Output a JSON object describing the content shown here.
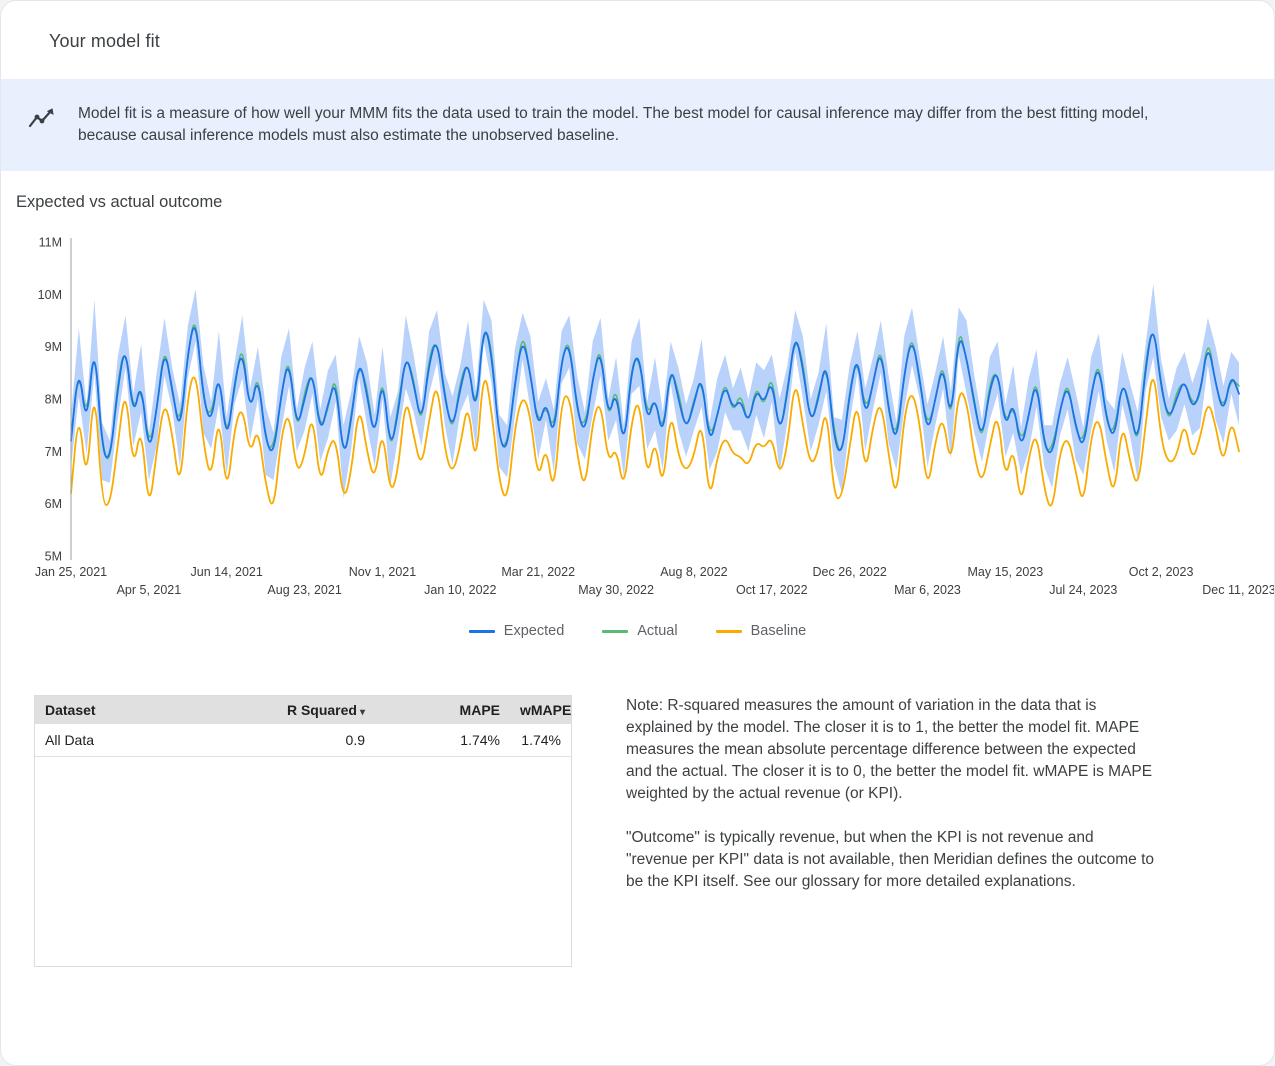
{
  "page": {
    "title": "Your model fit"
  },
  "banner": {
    "text": "Model fit is a measure of how well your MMM fits the data used to train the model. The best model for causal inference may differ from the best fitting model, because causal inference models must also estimate the unobserved baseline."
  },
  "chart_data": {
    "type": "line",
    "title": "Expected vs actual outcome",
    "xlabel": "",
    "ylabel": "",
    "ylim": [
      5,
      11
    ],
    "grid": false,
    "legend_position": "bottom",
    "y_ticks": [
      "5M",
      "6M",
      "7M",
      "8M",
      "9M",
      "10M",
      "11M"
    ],
    "y_tick_values": [
      5,
      6,
      7,
      8,
      9,
      10,
      11
    ],
    "x_tick_indices": [
      0,
      10,
      20,
      30,
      40,
      50,
      60,
      70,
      80,
      90,
      100,
      110,
      120,
      130,
      140,
      150
    ],
    "x_tick_labels": [
      "Jan 25, 2021",
      "Apr 5, 2021",
      "Jun 14, 2021",
      "Aug 23, 2021",
      "Nov 1, 2021",
      "Jan 10, 2022",
      "Mar 21, 2022",
      "May 30, 2022",
      "Aug 8, 2022",
      "Oct 17, 2022",
      "Dec 26, 2022",
      "Mar 6, 2023",
      "May 15, 2023",
      "Jul 24, 2023",
      "Oct 2, 2023",
      "Dec 11, 2023"
    ],
    "unit": "M",
    "legend": [
      "Expected",
      "Actual",
      "Baseline"
    ],
    "series": [
      {
        "name": "Expected",
        "color": "#1a73e8",
        "width": 1.8,
        "values": [
          7.2,
          8.7,
          7.4,
          9.2,
          7.0,
          6.8,
          8.2,
          9.1,
          7.6,
          8.4,
          6.9,
          7.8,
          9.0,
          8.2,
          7.3,
          8.9,
          9.6,
          8.0,
          7.5,
          8.6,
          7.1,
          8.3,
          9.0,
          7.7,
          8.5,
          7.2,
          6.9,
          8.1,
          8.8,
          7.4,
          8.0,
          8.6,
          7.3,
          7.9,
          8.4,
          6.8,
          7.6,
          8.8,
          8.1,
          7.2,
          8.5,
          7.0,
          7.7,
          8.9,
          8.3,
          7.5,
          8.7,
          9.2,
          8.0,
          7.4,
          8.2,
          8.8,
          7.6,
          9.5,
          8.9,
          7.2,
          7.0,
          8.3,
          9.2,
          8.5,
          7.4,
          8.0,
          7.2,
          8.8,
          9.1,
          7.8,
          7.3,
          8.4,
          9.0,
          7.6,
          8.2,
          7.0,
          8.6,
          8.9,
          7.5,
          8.1,
          7.2,
          8.7,
          8.0,
          7.4,
          7.9,
          8.5,
          7.1,
          7.7,
          8.3,
          7.8,
          8.0,
          7.5,
          8.2,
          7.9,
          8.4,
          7.3,
          8.1,
          9.3,
          8.6,
          7.5,
          8.0,
          8.8,
          7.2,
          6.9,
          8.1,
          8.9,
          7.6,
          8.3,
          9.0,
          7.8,
          7.1,
          8.5,
          9.2,
          8.4,
          7.3,
          8.0,
          8.7,
          7.5,
          9.3,
          8.8,
          7.9,
          7.2,
          8.2,
          8.6,
          7.4,
          8.0,
          7.0,
          7.7,
          8.4,
          7.1,
          6.9,
          7.8,
          8.3,
          7.5,
          7.0,
          8.1,
          8.7,
          7.6,
          7.2,
          8.4,
          7.8,
          7.1,
          8.6,
          9.5,
          8.2,
          7.6,
          8.0,
          8.4,
          7.8,
          8.1,
          9.1,
          8.3,
          7.7,
          8.5,
          8.1
        ]
      },
      {
        "name": "Actual",
        "color": "#5bb974",
        "width": 1.6,
        "values": [
          7.3,
          8.6,
          7.55,
          9.15,
          7.1,
          6.7,
          8.35,
          9.05,
          7.7,
          8.3,
          7.05,
          7.75,
          9.1,
          8.1,
          7.45,
          8.85,
          9.7,
          7.9,
          7.65,
          8.55,
          7.2,
          8.2,
          9.15,
          7.65,
          8.6,
          7.1,
          7.05,
          8.05,
          8.9,
          7.3,
          8.15,
          8.55,
          7.4,
          7.8,
          8.55,
          6.75,
          7.7,
          8.7,
          8.25,
          7.15,
          8.6,
          6.9,
          7.85,
          8.85,
          8.4,
          7.4,
          8.85,
          9.15,
          8.1,
          7.3,
          8.35,
          8.75,
          7.7,
          9.4,
          9.05,
          7.15,
          7.1,
          8.2,
          9.35,
          8.45,
          7.5,
          7.9,
          7.35,
          8.75,
          9.2,
          7.7,
          7.45,
          8.35,
          9.1,
          7.5,
          8.35,
          6.95,
          8.7,
          8.8,
          7.65,
          8.05,
          7.3,
          8.6,
          8.15,
          7.35,
          8.0,
          8.4,
          7.25,
          7.65,
          8.4,
          7.7,
          8.15,
          7.45,
          8.3,
          7.8,
          8.55,
          7.25,
          8.2,
          9.2,
          8.75,
          7.45,
          8.1,
          8.7,
          7.35,
          6.85,
          8.2,
          8.8,
          7.75,
          8.25,
          9.1,
          7.7,
          7.25,
          8.45,
          9.3,
          8.3,
          7.45,
          7.95,
          8.8,
          7.4,
          9.45,
          8.75,
          8.0,
          7.1,
          8.35,
          8.55,
          7.5,
          7.9,
          7.15,
          7.65,
          8.5,
          7.0,
          7.05,
          7.75,
          8.4,
          7.4,
          7.15,
          8.05,
          8.8,
          7.5,
          7.35,
          8.35,
          7.9,
          7.0,
          8.75,
          9.45,
          8.3,
          7.5,
          8.15,
          8.35,
          7.9,
          8.0,
          9.25,
          8.25,
          7.8,
          8.4,
          8.25
        ]
      },
      {
        "name": "Baseline",
        "color": "#f9ab00",
        "width": 1.8,
        "values": [
          6.2,
          7.85,
          6.3,
          8.4,
          6.0,
          5.95,
          7.1,
          8.3,
          6.6,
          7.55,
          5.8,
          7.0,
          8.0,
          7.35,
          6.2,
          8.1,
          8.6,
          7.15,
          6.4,
          7.8,
          6.1,
          7.45,
          7.9,
          6.9,
          7.5,
          6.35,
          5.8,
          7.3,
          7.8,
          6.55,
          6.9,
          7.8,
          6.3,
          7.05,
          7.3,
          6.0,
          6.6,
          7.95,
          7.0,
          6.4,
          7.5,
          6.15,
          6.6,
          8.1,
          7.3,
          6.65,
          7.6,
          8.4,
          7.0,
          6.55,
          7.1,
          8.0,
          6.6,
          8.65,
          7.8,
          6.4,
          6.0,
          7.45,
          8.1,
          7.7,
          6.4,
          7.15,
          6.1,
          8.0,
          8.1,
          6.95,
          6.2,
          7.6,
          8.0,
          6.75,
          7.1,
          6.2,
          7.6,
          8.05,
          6.4,
          7.3,
          6.2,
          7.85,
          6.9,
          6.6,
          6.9,
          7.65,
          6.0,
          6.9,
          7.3,
          6.95,
          6.9,
          6.7,
          7.2,
          7.05,
          7.3,
          6.5,
          7.1,
          8.45,
          7.5,
          6.7,
          7.0,
          7.95,
          6.1,
          6.1,
          7.1,
          8.05,
          6.5,
          7.5,
          8.0,
          6.95,
          6.0,
          7.7,
          8.2,
          7.55,
          6.2,
          7.2,
          7.7,
          6.65,
          8.2,
          8.0,
          6.9,
          6.35,
          7.1,
          7.8,
          6.4,
          7.15,
          5.9,
          6.9,
          7.4,
          6.25,
          5.8,
          7.0,
          7.3,
          6.65,
          5.9,
          7.3,
          7.7,
          6.75,
          6.1,
          7.6,
          6.8,
          6.25,
          7.5,
          8.7,
          7.2,
          6.75,
          6.9,
          7.6,
          6.8,
          7.25,
          8.0,
          7.5,
          6.7,
          7.65,
          7.0
        ]
      }
    ],
    "band": {
      "series": "Expected",
      "color": "#a8c7fa",
      "opacity": 0.8,
      "halfwidth_cycle": [
        0.5,
        0.65,
        0.45,
        0.7,
        0.55,
        0.4,
        0.6,
        0.5
      ]
    }
  },
  "table": {
    "headers": [
      "Dataset",
      "R Squared",
      "MAPE",
      "wMAPE"
    ],
    "sort_arrow": "▾",
    "rows": [
      [
        "All Data",
        "0.9",
        "1.74%",
        "1.74%"
      ]
    ]
  },
  "notes": {
    "para1": "Note: R-squared measures the amount of variation in the data that is explained by the model. The closer it is to 1, the better the model fit. MAPE measures the mean absolute percentage difference between the expected and the actual. The closer it is to 0, the better the model fit. wMAPE is MAPE weighted by the actual revenue (or KPI).",
    "para2": "\"Outcome\" is typically revenue, but when the KPI is not revenue and \"revenue per KPI\" data is not available, then Meridian defines the outcome to be the KPI itself. See our glossary for more detailed explanations."
  }
}
